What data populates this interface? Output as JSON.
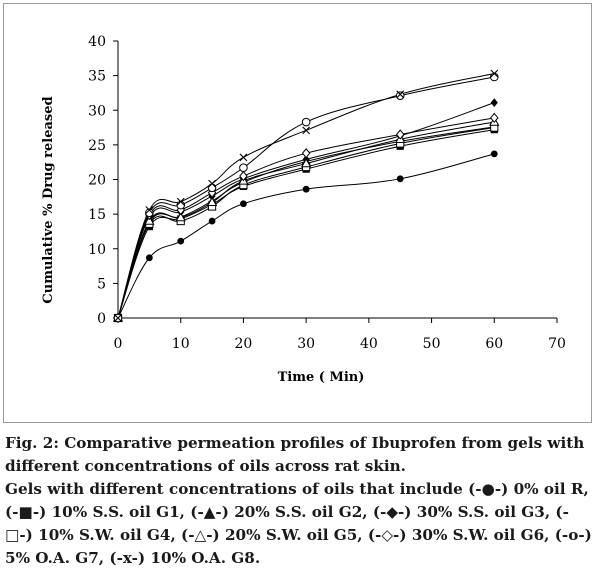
{
  "chart_data": {
    "type": "line",
    "xlabel": "Time ( Min)",
    "ylabel": "Cumulative % Drug released",
    "xlim": [
      0,
      70
    ],
    "ylim": [
      0,
      40
    ],
    "xticks": [
      "0",
      "10",
      "20",
      "30",
      "40",
      "50",
      "60",
      "70"
    ],
    "yticks": [
      "0",
      "5",
      "10",
      "15",
      "20",
      "25",
      "30",
      "35",
      "40"
    ],
    "grid": false,
    "x": [
      0,
      5,
      10,
      15,
      20,
      30,
      45,
      60
    ],
    "series": [
      {
        "key": "R",
        "marker": "filled-circle",
        "values": [
          0,
          8.7,
          11.1,
          14.0,
          16.5,
          18.6,
          20.1,
          23.7
        ]
      },
      {
        "key": "G1",
        "marker": "filled-square",
        "values": [
          0,
          13.2,
          14.3,
          16.4,
          19.0,
          21.5,
          24.8,
          27.2
        ]
      },
      {
        "key": "G2",
        "marker": "filled-triangle",
        "values": [
          0,
          13.8,
          14.6,
          16.9,
          19.6,
          22.6,
          25.5,
          27.6
        ]
      },
      {
        "key": "G3",
        "marker": "filled-diamond",
        "values": [
          0,
          14.6,
          15.3,
          17.6,
          20.1,
          22.9,
          26.3,
          31.1
        ]
      },
      {
        "key": "G4",
        "marker": "open-square",
        "values": [
          0,
          13.6,
          14.0,
          16.1,
          19.2,
          21.8,
          25.2,
          27.5
        ]
      },
      {
        "key": "G5",
        "marker": "open-triangle",
        "values": [
          0,
          14.0,
          14.5,
          16.7,
          19.8,
          22.3,
          25.8,
          28.3
        ]
      },
      {
        "key": "G6",
        "marker": "open-diamond",
        "values": [
          0,
          14.9,
          15.6,
          18.1,
          20.5,
          23.8,
          26.5,
          28.9
        ]
      },
      {
        "key": "G7",
        "marker": "open-circle",
        "values": [
          0,
          15.2,
          16.3,
          18.8,
          21.7,
          28.3,
          32.1,
          34.8
        ]
      },
      {
        "key": "G8",
        "marker": "x",
        "values": [
          0,
          15.6,
          16.8,
          19.4,
          23.2,
          27.1,
          32.3,
          35.3
        ]
      }
    ]
  },
  "caption": {
    "title_line": "Fig. 2: Comparative permeation profiles of Ibuprofen from gels with different concentrations of oils across rat skin.",
    "body_line": "Gels with different concentrations of oils that include (-●-) 0% oil R, (-■-) 10% S.S. oil G1, (-▲-) 20% S.S. oil G2, (-◆-) 30% S.S. oil G3, (-□-) 10% S.W. oil G4, (-△-) 20% S.W. oil G5, (-◇-) 30% S.W. oil G6, (-o-) 5% O.A. G7, (-x-) 10% O.A. G8."
  },
  "colors": {
    "line": "#000000",
    "caption_text": "#1a1a1a",
    "frame": "#9a9a9a"
  }
}
